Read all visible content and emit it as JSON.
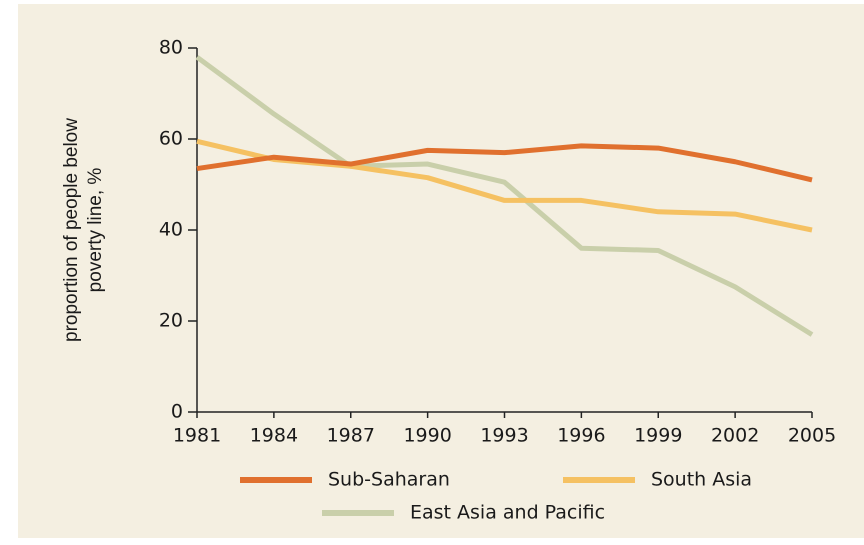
{
  "chart_data": {
    "type": "line",
    "ylabel": [
      "proportion of people below",
      "poverty line, %"
    ],
    "x": [
      1981,
      1984,
      1987,
      1990,
      1993,
      1996,
      1999,
      2002,
      2005
    ],
    "xlim": [
      1981,
      2005
    ],
    "xticks": [
      1981,
      1984,
      1987,
      1990,
      1993,
      1996,
      1999,
      2002,
      2005
    ],
    "ylim": [
      0,
      80
    ],
    "yticks": [
      0,
      20,
      40,
      60,
      80
    ],
    "grid": false,
    "series": [
      {
        "name": "Sub-Saharan",
        "color": "#e0702e",
        "values": [
          53.5,
          56,
          54.5,
          57.5,
          57,
          58.5,
          58,
          55,
          51
        ]
      },
      {
        "name": "South Asia",
        "color": "#f5c162",
        "values": [
          59.5,
          55.5,
          54,
          51.5,
          46.5,
          46.5,
          44,
          43.5,
          40
        ]
      },
      {
        "name": "East Asia and Pacific",
        "color": "#c9cfaa",
        "values": [
          78,
          65.5,
          54,
          54.5,
          50.5,
          36,
          35.5,
          27.5,
          17
        ]
      }
    ]
  }
}
